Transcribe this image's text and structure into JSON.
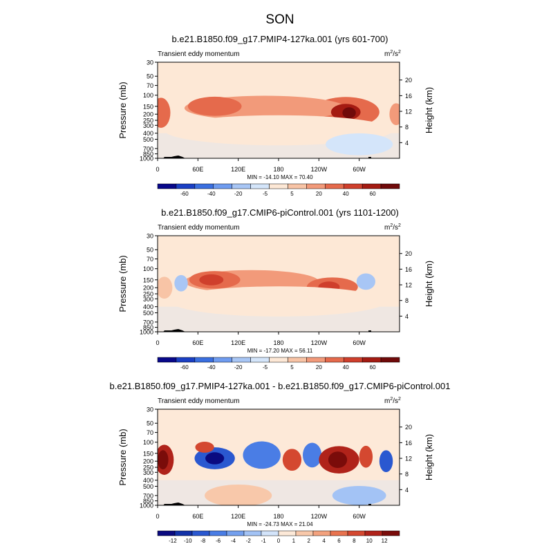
{
  "figure_title": "SON",
  "chart_data": [
    {
      "type": "heatmap",
      "title": "b.e21.B1850.f09_g17.PMIP4-127ka.001 (yrs 601-700)",
      "left_label": "Transient eddy momentum",
      "units_base": "m",
      "units_exp1": "2",
      "units_mid": "/s",
      "units_exp2": "2",
      "ylabel": "Pressure (mb)",
      "ylabel_right": "Height (km)",
      "pressure_ticks": [
        "30",
        "50",
        "70",
        "100",
        "150",
        "200",
        "250",
        "300",
        "400",
        "500",
        "700",
        "850",
        "1000"
      ],
      "height_ticks": [
        "20",
        "16",
        "12",
        "8",
        "4"
      ],
      "lon_ticks": [
        "0",
        "60E",
        "120E",
        "180",
        "120W",
        "60W"
      ],
      "min_max": "MIN = -14.10  MAX =  70.40",
      "colorbar_labels": [
        "-60",
        "-40",
        "-20",
        "-5",
        "5",
        "20",
        "40",
        "60"
      ]
    },
    {
      "type": "heatmap",
      "title": "b.e21.B1850.f09_g17.CMIP6-piControl.001 (yrs 1101-1200)",
      "left_label": "Transient eddy momentum",
      "units_base": "m",
      "units_exp1": "2",
      "units_mid": "/s",
      "units_exp2": "2",
      "ylabel": "Pressure (mb)",
      "ylabel_right": "Height (km)",
      "pressure_ticks": [
        "30",
        "50",
        "70",
        "100",
        "150",
        "200",
        "250",
        "300",
        "400",
        "500",
        "700",
        "850",
        "1000"
      ],
      "height_ticks": [
        "20",
        "16",
        "12",
        "8",
        "4"
      ],
      "lon_ticks": [
        "0",
        "60E",
        "120E",
        "180",
        "120W",
        "60W"
      ],
      "min_max": "MIN = -17.20  MAX =  56.11",
      "colorbar_labels": [
        "-60",
        "-40",
        "-20",
        "-5",
        "5",
        "20",
        "40",
        "60"
      ]
    },
    {
      "type": "heatmap",
      "title": "b.e21.B1850.f09_g17.PMIP4-127ka.001 - b.e21.B1850.f09_g17.CMIP6-piControl.001",
      "left_label": "Transient eddy momentum",
      "units_base": "m",
      "units_exp1": "2",
      "units_mid": "/s",
      "units_exp2": "2",
      "ylabel": "Pressure (mb)",
      "ylabel_right": "Height (km)",
      "pressure_ticks": [
        "30",
        "50",
        "70",
        "100",
        "150",
        "200",
        "250",
        "300",
        "400",
        "500",
        "700",
        "850",
        "1000"
      ],
      "height_ticks": [
        "20",
        "16",
        "12",
        "8",
        "4"
      ],
      "lon_ticks": [
        "0",
        "60E",
        "120E",
        "180",
        "120W",
        "60W"
      ],
      "min_max": "MIN = -24.73  MAX =  21.04",
      "colorbar_labels": [
        "-12",
        "-10",
        "-8",
        "-6",
        "-4",
        "-2",
        "-1",
        "0",
        "1",
        "2",
        "4",
        "6",
        "8",
        "10",
        "12"
      ]
    }
  ],
  "palettes": {
    "abs": [
      "#08088a",
      "#1a3fc4",
      "#3a6fe0",
      "#6f9cf0",
      "#a8c6f5",
      "#d4e5fa",
      "#fde8d6",
      "#f8c4a6",
      "#f29a7a",
      "#e56a4c",
      "#cf3f2c",
      "#a41b12",
      "#700a0a"
    ],
    "diff": [
      "#0a0a80",
      "#1232a8",
      "#2a58d0",
      "#4a7de5",
      "#74a0ee",
      "#a3c3f5",
      "#d3e4fa",
      "#fde9d8",
      "#f8c8aa",
      "#f3a27e",
      "#e8734f",
      "#d44830",
      "#b0231a",
      "#7a0c0a"
    ]
  }
}
